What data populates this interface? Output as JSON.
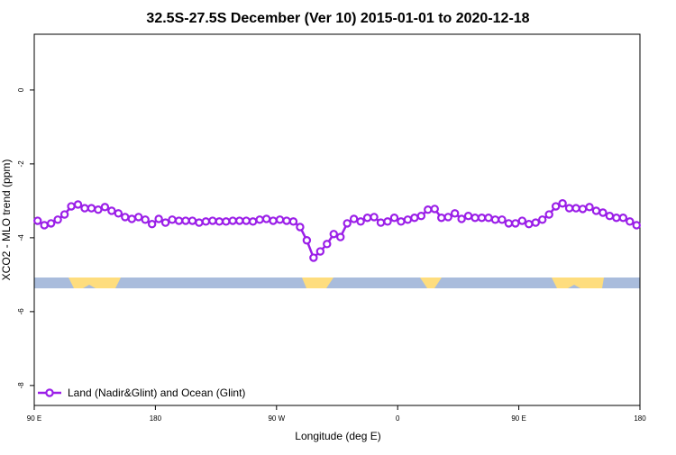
{
  "chart_data": {
    "type": "line",
    "title": "32.5S-27.5S December (Ver 10)   2015-01-01 to 2020-12-18",
    "xlabel": "Longitude (deg E)",
    "ylabel": "XCO2 - MLO trend (ppm)",
    "xlim": [
      90,
      540
    ],
    "xticks": [
      {
        "value": 90,
        "label": "90 E"
      },
      {
        "value": 180,
        "label": "180"
      },
      {
        "value": 270,
        "label": "90 W"
      },
      {
        "value": 360,
        "label": "0"
      },
      {
        "value": 450,
        "label": "90 E"
      },
      {
        "value": 540,
        "label": "180"
      }
    ],
    "ylim": [
      -8.54,
      1.51
    ],
    "yticks": [
      0,
      -2,
      -4,
      -6,
      -8
    ],
    "legend_position": "bottom-left",
    "x": [
      92.5,
      97.5,
      102.5,
      107.5,
      112.5,
      117.5,
      122.5,
      127.5,
      132.5,
      137.5,
      142.5,
      147.5,
      152.5,
      157.5,
      162.5,
      167.5,
      172.5,
      177.5,
      182.5,
      187.5,
      192.5,
      197.5,
      202.5,
      207.5,
      212.5,
      217.5,
      222.5,
      227.5,
      232.5,
      237.5,
      242.5,
      247.5,
      252.5,
      257.5,
      262.5,
      267.5,
      272.5,
      277.5,
      282.5,
      287.5,
      292.5,
      297.5,
      302.5,
      307.5,
      312.5,
      317.5,
      322.5,
      327.5,
      332.5,
      337.5,
      342.5,
      347.5,
      352.5,
      357.5,
      362.5,
      367.5,
      372.5,
      377.5,
      382.5,
      387.5,
      392.5,
      397.5,
      402.5,
      407.5,
      412.5,
      417.5,
      422.5,
      427.5,
      432.5,
      437.5,
      442.5,
      447.5,
      452.5,
      457.5,
      462.5,
      467.5,
      472.5,
      477.5,
      482.5,
      487.5,
      492.5,
      497.5,
      502.5,
      507.5,
      512.5,
      517.5,
      522.5,
      527.5,
      532.5,
      537.5
    ],
    "series": [
      {
        "name": "Land (Nadir&Glint) and Ocean (Glint)",
        "color": "#9b1fe8",
        "values": [
          -3.54,
          -3.66,
          -3.61,
          -3.51,
          -3.37,
          -3.15,
          -3.1,
          -3.2,
          -3.2,
          -3.24,
          -3.17,
          -3.27,
          -3.34,
          -3.44,
          -3.49,
          -3.44,
          -3.51,
          -3.63,
          -3.49,
          -3.59,
          -3.51,
          -3.54,
          -3.54,
          -3.54,
          -3.59,
          -3.56,
          -3.54,
          -3.56,
          -3.56,
          -3.54,
          -3.54,
          -3.54,
          -3.56,
          -3.51,
          -3.49,
          -3.54,
          -3.51,
          -3.54,
          -3.56,
          -3.71,
          -4.07,
          -4.54,
          -4.37,
          -4.17,
          -3.9,
          -3.98,
          -3.61,
          -3.49,
          -3.56,
          -3.46,
          -3.44,
          -3.59,
          -3.56,
          -3.46,
          -3.56,
          -3.51,
          -3.46,
          -3.41,
          -3.24,
          -3.22,
          -3.46,
          -3.44,
          -3.34,
          -3.49,
          -3.41,
          -3.46,
          -3.46,
          -3.46,
          -3.51,
          -3.51,
          -3.61,
          -3.61,
          -3.54,
          -3.63,
          -3.59,
          -3.51,
          -3.37,
          -3.15,
          -3.07,
          -3.2,
          -3.2,
          -3.22,
          -3.17,
          -3.27,
          -3.32,
          -3.41,
          -3.46,
          -3.46,
          -3.56,
          -3.66
        ]
      }
    ]
  }
}
